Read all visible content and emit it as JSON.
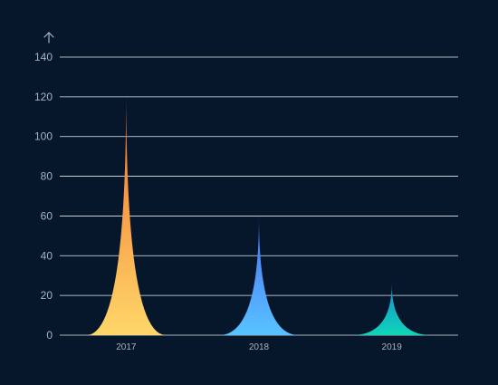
{
  "chart_data": {
    "type": "bar",
    "style": "pictorial-spike",
    "title": "",
    "xlabel": "",
    "ylabel": "",
    "ylabel_icon": "arrow-up-icon",
    "categories": [
      "2017",
      "2018",
      "2019"
    ],
    "values": [
      123,
      60,
      26
    ],
    "ylim": [
      0,
      140
    ],
    "yticks": [
      "0",
      "20",
      "40",
      "60",
      "80",
      "100",
      "120",
      "140"
    ],
    "grid": true,
    "legend": "none",
    "colors": {
      "background": "#06172b",
      "grid": "#ffffff",
      "axis_text": "#aab3bf",
      "axis_icon": "#aab3bf",
      "bar_gradients": [
        {
          "top": "#f06a2a",
          "bottom": "#ffd76a"
        },
        {
          "top": "#4a6cf7",
          "bottom": "#58c3ff"
        },
        {
          "top": "#1a8acb",
          "bottom": "#10d5b8"
        }
      ]
    }
  }
}
